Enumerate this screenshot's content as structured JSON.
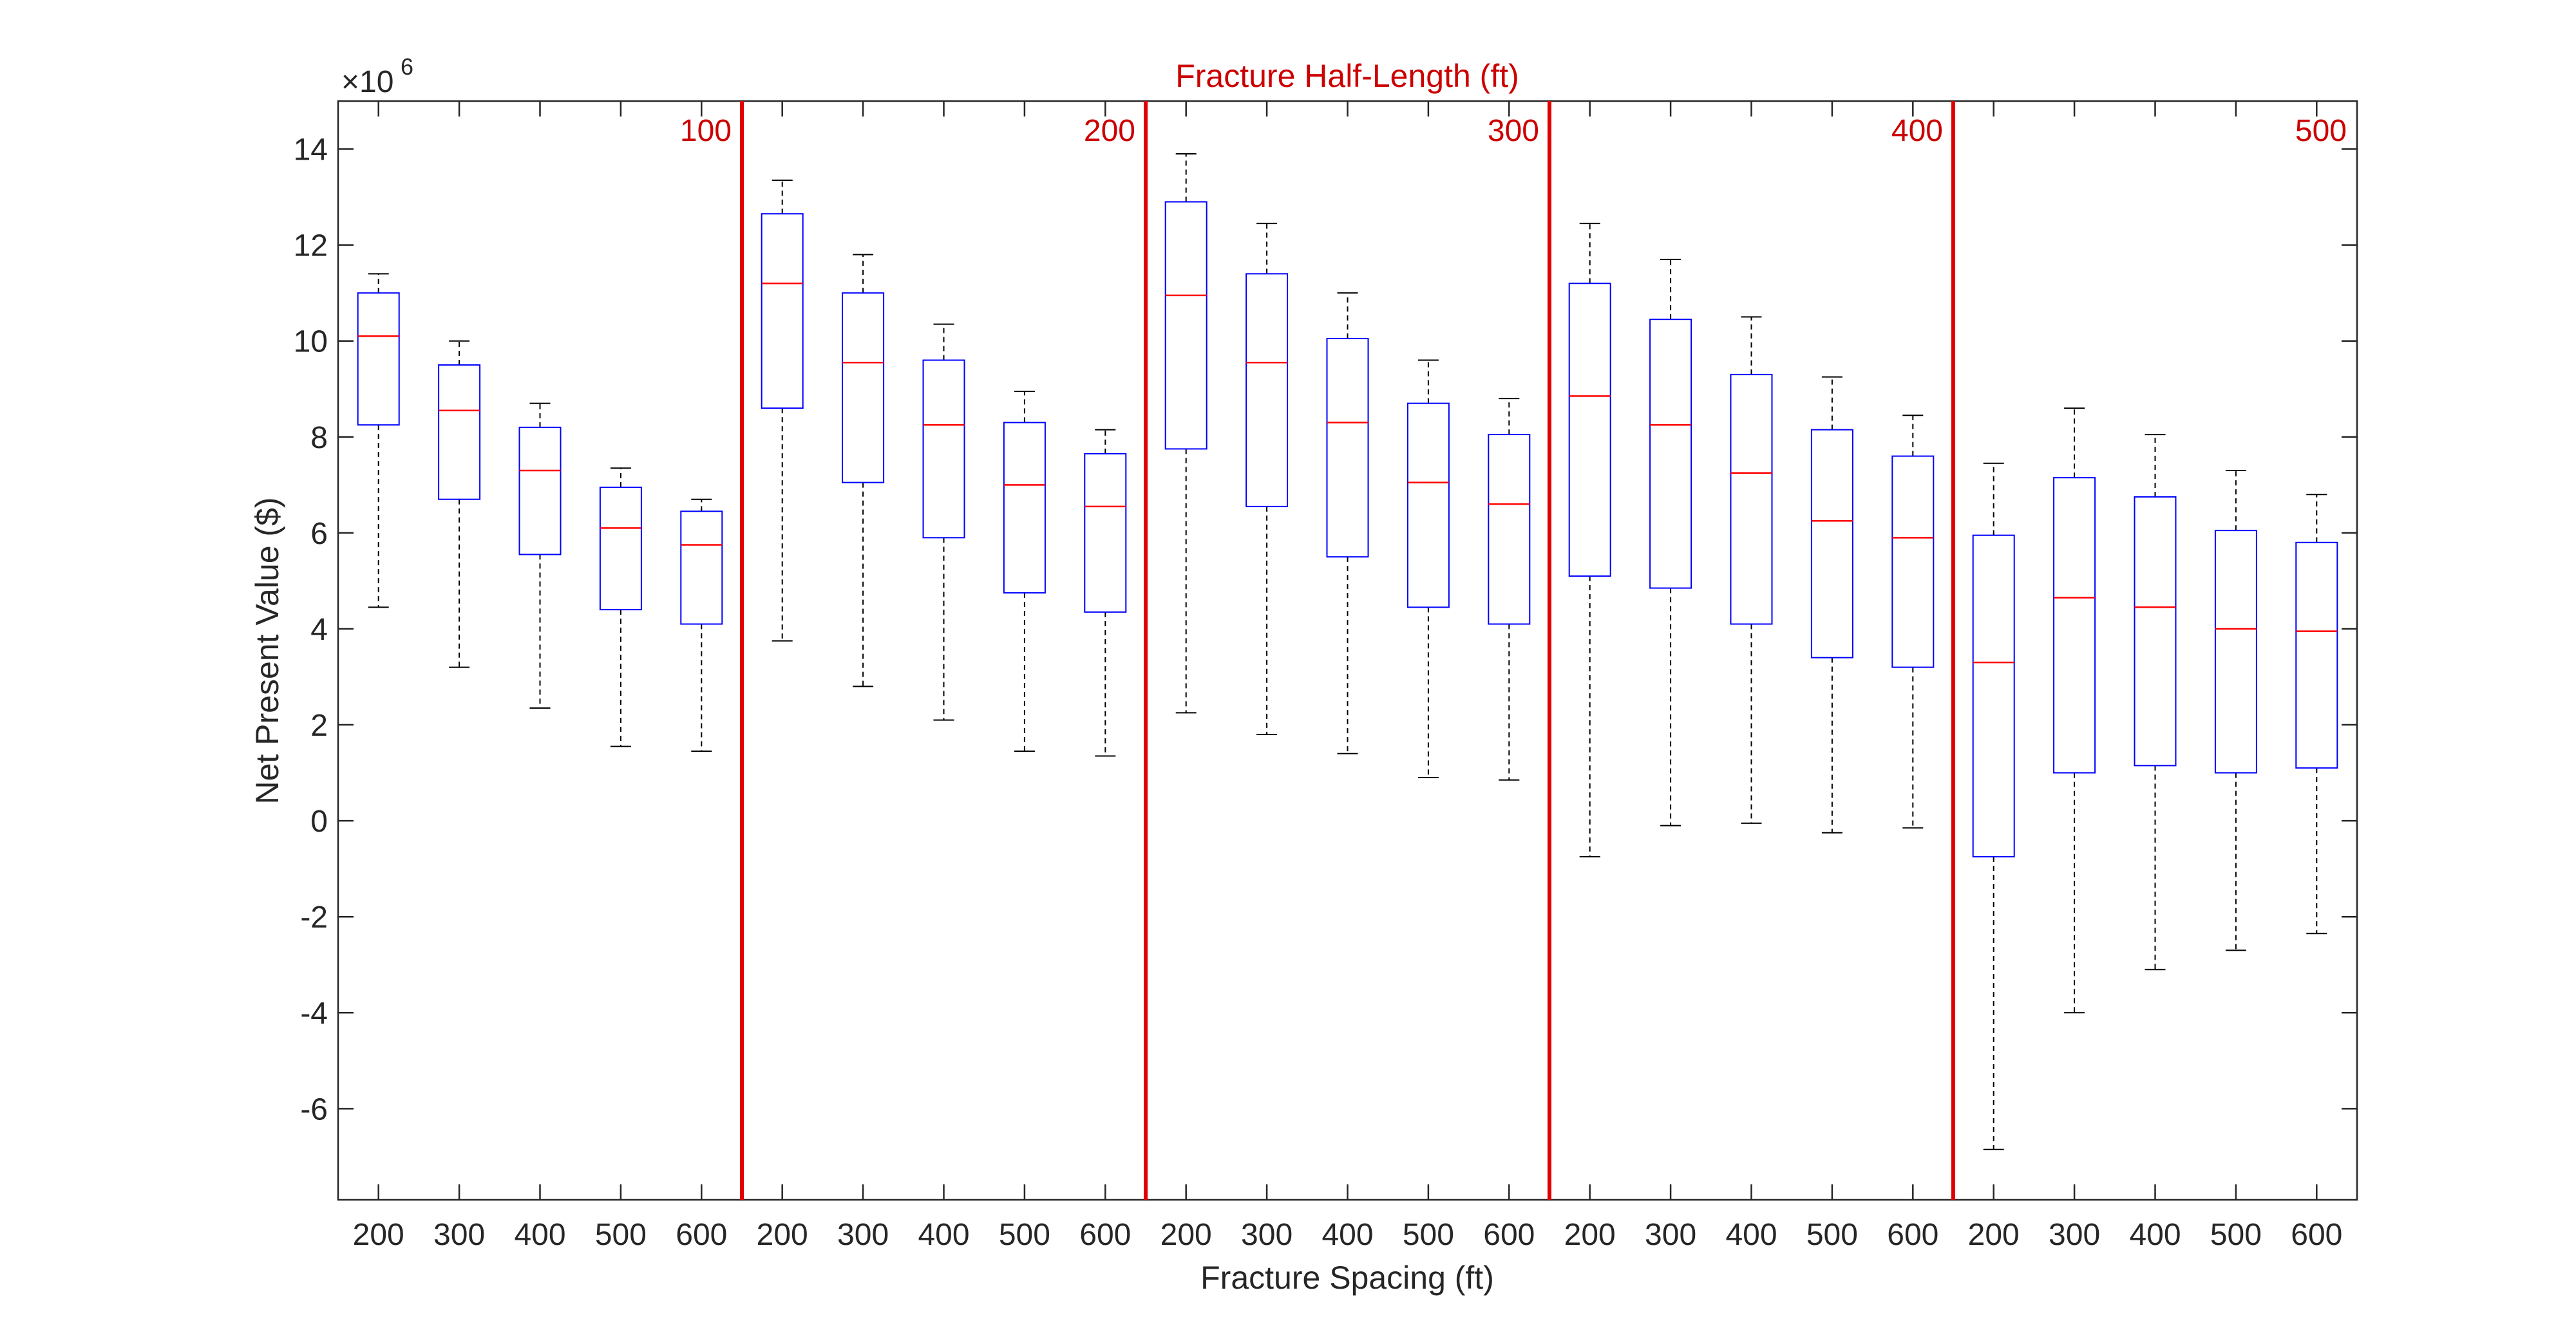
{
  "chart_data": {
    "type": "box",
    "title": "Fracture Half-Length (ft)",
    "xlabel": "Fracture Spacing (ft)",
    "ylabel": "Net Present Value ($)",
    "y_exponent_label": "×10",
    "y_exponent_power": "6",
    "ylim": [
      -7.9,
      15
    ],
    "yticks": [
      -6,
      -4,
      -2,
      0,
      2,
      4,
      6,
      8,
      10,
      12,
      14
    ],
    "x_tick_labels": [
      "200",
      "300",
      "400",
      "500",
      "600",
      "200",
      "300",
      "400",
      "500",
      "600",
      "200",
      "300",
      "400",
      "500",
      "600",
      "200",
      "300",
      "400",
      "500",
      "600",
      "200",
      "300",
      "400",
      "500",
      "600"
    ],
    "groups": [
      {
        "label": "100",
        "spacings": [
          200,
          300,
          400,
          500,
          600
        ]
      },
      {
        "label": "200",
        "spacings": [
          200,
          300,
          400,
          500,
          600
        ]
      },
      {
        "label": "300",
        "spacings": [
          200,
          300,
          400,
          500,
          600
        ]
      },
      {
        "label": "400",
        "spacings": [
          200,
          300,
          400,
          500,
          600
        ]
      },
      {
        "label": "500",
        "spacings": [
          200,
          300,
          400,
          500,
          600
        ]
      }
    ],
    "boxes": [
      {
        "min": 4.45,
        "q1": 8.25,
        "median": 10.1,
        "q3": 11.0,
        "max": 11.4
      },
      {
        "min": 3.2,
        "q1": 6.7,
        "median": 8.55,
        "q3": 9.5,
        "max": 10.0
      },
      {
        "min": 2.35,
        "q1": 5.55,
        "median": 7.3,
        "q3": 8.2,
        "max": 8.7
      },
      {
        "min": 1.55,
        "q1": 4.4,
        "median": 6.1,
        "q3": 6.95,
        "max": 7.35
      },
      {
        "min": 1.45,
        "q1": 4.1,
        "median": 5.75,
        "q3": 6.45,
        "max": 6.7
      },
      {
        "min": 3.75,
        "q1": 8.6,
        "median": 11.2,
        "q3": 12.65,
        "max": 13.35
      },
      {
        "min": 2.8,
        "q1": 7.05,
        "median": 9.55,
        "q3": 11.0,
        "max": 11.8
      },
      {
        "min": 2.1,
        "q1": 5.9,
        "median": 8.25,
        "q3": 9.6,
        "max": 10.35
      },
      {
        "min": 1.45,
        "q1": 4.75,
        "median": 7.0,
        "q3": 8.3,
        "max": 8.95
      },
      {
        "min": 1.35,
        "q1": 4.35,
        "median": 6.55,
        "q3": 7.65,
        "max": 8.15
      },
      {
        "min": 2.25,
        "q1": 7.75,
        "median": 10.95,
        "q3": 12.9,
        "max": 13.9
      },
      {
        "min": 1.8,
        "q1": 6.55,
        "median": 9.55,
        "q3": 11.4,
        "max": 12.45
      },
      {
        "min": 1.4,
        "q1": 5.5,
        "median": 8.3,
        "q3": 10.05,
        "max": 11.0
      },
      {
        "min": 0.9,
        "q1": 4.45,
        "median": 7.05,
        "q3": 8.7,
        "max": 9.6
      },
      {
        "min": 0.85,
        "q1": 4.1,
        "median": 6.6,
        "q3": 8.05,
        "max": 8.8
      },
      {
        "min": -0.75,
        "q1": 5.1,
        "median": 8.85,
        "q3": 11.2,
        "max": 12.45
      },
      {
        "min": -0.1,
        "q1": 4.85,
        "median": 8.25,
        "q3": 10.45,
        "max": 11.7
      },
      {
        "min": -0.05,
        "q1": 4.1,
        "median": 7.25,
        "q3": 9.3,
        "max": 10.5
      },
      {
        "min": -0.25,
        "q1": 3.4,
        "median": 6.25,
        "q3": 8.15,
        "max": 9.25
      },
      {
        "min": -0.15,
        "q1": 3.2,
        "median": 5.9,
        "q3": 7.6,
        "max": 8.45
      },
      {
        "min": -6.85,
        "q1": -0.75,
        "median": 3.3,
        "q3": 5.95,
        "max": 7.45
      },
      {
        "min": -4.0,
        "q1": 1.0,
        "median": 4.65,
        "q3": 7.15,
        "max": 8.6
      },
      {
        "min": -3.1,
        "q1": 1.15,
        "median": 4.45,
        "q3": 6.75,
        "max": 8.05
      },
      {
        "min": -2.7,
        "q1": 1.0,
        "median": 4.0,
        "q3": 6.05,
        "max": 7.3
      },
      {
        "min": -2.35,
        "q1": 1.1,
        "median": 3.95,
        "q3": 5.8,
        "max": 6.8
      }
    ],
    "colors": {
      "box": "#0000ff",
      "median": "#ff0000",
      "whisker": "#000000",
      "separator": "#e00000",
      "group_label": "#cc0000",
      "axis": "#262626"
    },
    "grid": false,
    "legend": "none"
  }
}
